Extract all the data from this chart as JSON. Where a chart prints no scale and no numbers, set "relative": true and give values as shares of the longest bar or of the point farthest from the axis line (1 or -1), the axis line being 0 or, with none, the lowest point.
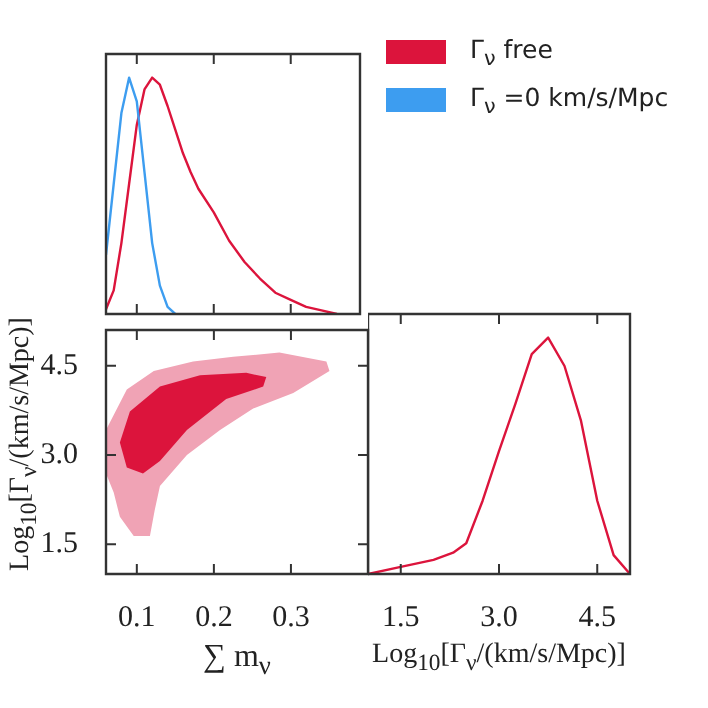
{
  "chart_data": [
    {
      "type": "line",
      "relative": true,
      "xlim": [
        0.06,
        0.39
      ],
      "xticks": [
        0.1,
        0.2,
        0.3
      ],
      "tick_labels": false,
      "legend": "right",
      "series": [
        {
          "name": "Γ$_{ν}$ free",
          "color": "#dc143c",
          "x": [
            0.06,
            0.07,
            0.08,
            0.09,
            0.1,
            0.11,
            0.12,
            0.13,
            0.14,
            0.15,
            0.16,
            0.17,
            0.18,
            0.2,
            0.22,
            0.24,
            0.26,
            0.28,
            0.3,
            0.32,
            0.34,
            0.36
          ],
          "values": [
            0.02,
            0.1,
            0.3,
            0.55,
            0.8,
            0.95,
            1.0,
            0.97,
            0.88,
            0.78,
            0.68,
            0.6,
            0.53,
            0.43,
            0.31,
            0.22,
            0.15,
            0.09,
            0.06,
            0.03,
            0.015,
            0.0
          ]
        },
        {
          "name": "Γ$_{ν}$ =0 km/s/Mpc",
          "color": "#3d9df0",
          "x": [
            0.06,
            0.07,
            0.08,
            0.09,
            0.1,
            0.11,
            0.12,
            0.13,
            0.14,
            0.15
          ],
          "values": [
            0.25,
            0.55,
            0.85,
            1.0,
            0.9,
            0.6,
            0.3,
            0.12,
            0.03,
            0.0
          ]
        }
      ]
    },
    {
      "type": "area",
      "xlabel": "∑ m$_{ν}$",
      "ylabel": "Log$_{10}$[Γ$_{ν}$/(km/s/Mpc)]",
      "xlim": [
        0.06,
        0.4
      ],
      "xticks": [
        0.1,
        0.2,
        0.3
      ],
      "ylim": [
        1.0,
        5.1
      ],
      "yticks": [
        1.5,
        {
          "value": 3,
          "label": "3.0"
        },
        4.5
      ],
      "series": [
        {
          "color": "#f0a3b5",
          "x": [
            0.06,
            0.087,
            0.122,
            0.173,
            0.225,
            0.285,
            0.346,
            0.35,
            0.303,
            0.251,
            0.208,
            0.165,
            0.13,
            0.123,
            0.117,
            0.096,
            0.078,
            0.07,
            0.06
          ],
          "values": [
            3.42,
            4.1,
            4.41,
            4.57,
            4.65,
            4.72,
            4.57,
            4.41,
            4.04,
            3.78,
            3.42,
            3.0,
            2.48,
            2.06,
            1.64,
            1.64,
            1.96,
            2.37,
            2.69
          ]
        },
        {
          "color": "#dc143c",
          "x": [
            0.078,
            0.091,
            0.13,
            0.182,
            0.242,
            0.268,
            0.264,
            0.216,
            0.165,
            0.13,
            0.108,
            0.087
          ],
          "values": [
            3.21,
            3.73,
            4.15,
            4.34,
            4.38,
            4.31,
            4.15,
            3.94,
            3.42,
            2.9,
            2.69,
            2.79
          ]
        }
      ]
    },
    {
      "type": "line",
      "relative": true,
      "xlabel": "Log$_{10}$[Γ$_{ν}$/(km/s/Mpc)]",
      "xlim": [
        1.0,
        5.0
      ],
      "xticks": [
        1.5,
        {
          "value": 3,
          "label": "3.0"
        },
        4.5
      ],
      "tick_labels": "x",
      "series": [
        {
          "color": "#dc143c",
          "x": [
            1.0,
            1.5,
            2.0,
            2.3,
            2.5,
            2.75,
            3.0,
            3.25,
            3.5,
            3.75,
            4.0,
            4.25,
            4.5,
            4.75,
            5.0
          ],
          "values": [
            0,
            0.03,
            0.06,
            0.09,
            0.13,
            0.31,
            0.52,
            0.72,
            0.93,
            1.0,
            0.88,
            0.65,
            0.31,
            0.08,
            0.0
          ]
        }
      ]
    }
  ]
}
